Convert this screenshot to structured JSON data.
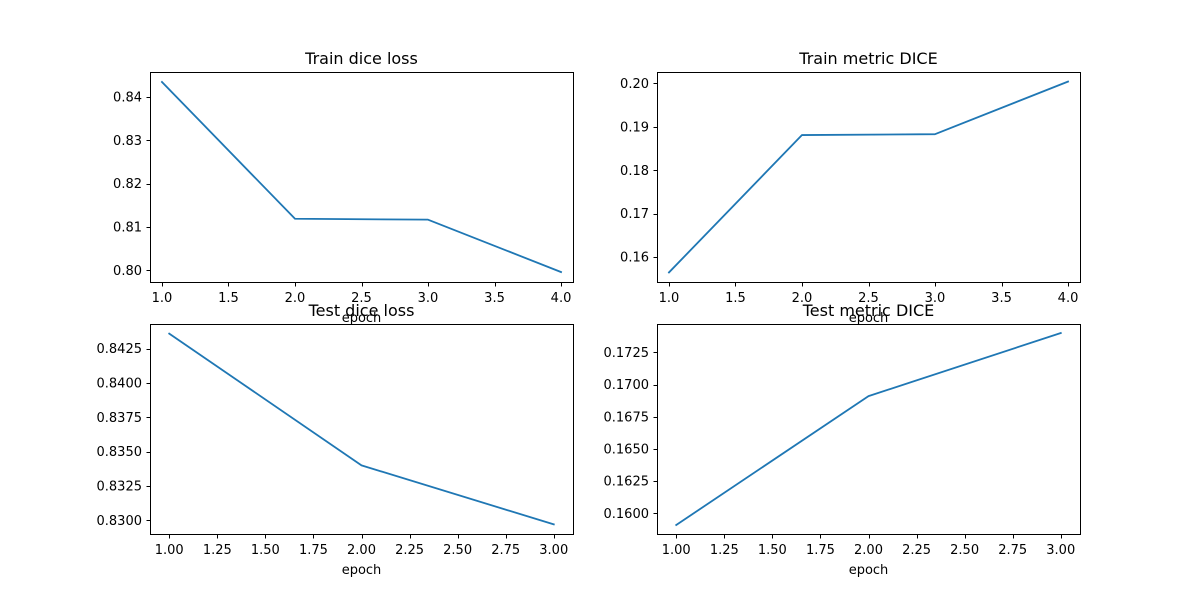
{
  "chart_data": [
    {
      "type": "line",
      "title": "Train dice loss",
      "xlabel": "epoch",
      "ylabel": "",
      "x": [
        1,
        2,
        3,
        4
      ],
      "series": [
        {
          "values": [
            0.8435,
            0.8119,
            0.8117,
            0.7996
          ]
        }
      ],
      "xlim": [
        0.91,
        4.09
      ],
      "ylim": [
        0.7973,
        0.8458
      ],
      "xticks": [
        1.0,
        1.5,
        2.0,
        2.5,
        3.0,
        3.5,
        4.0
      ],
      "xtick_labels": [
        "1.0",
        "1.5",
        "2.0",
        "2.5",
        "3.0",
        "3.5",
        "4.0"
      ],
      "yticks": [
        0.8,
        0.81,
        0.82,
        0.83,
        0.84
      ],
      "ytick_labels": [
        "0.80",
        "0.81",
        "0.82",
        "0.83",
        "0.84"
      ],
      "grid": false,
      "color": "#1f77b4"
    },
    {
      "type": "line",
      "title": "Train metric DICE",
      "xlabel": "epoch",
      "ylabel": "",
      "x": [
        1,
        2,
        3,
        4
      ],
      "series": [
        {
          "values": [
            0.1565,
            0.1881,
            0.1883,
            0.2004
          ]
        }
      ],
      "xlim": [
        0.91,
        4.09
      ],
      "ylim": [
        0.1543,
        0.2026
      ],
      "xticks": [
        1.0,
        1.5,
        2.0,
        2.5,
        3.0,
        3.5,
        4.0
      ],
      "xtick_labels": [
        "1.0",
        "1.5",
        "2.0",
        "2.5",
        "3.0",
        "3.5",
        "4.0"
      ],
      "yticks": [
        0.16,
        0.17,
        0.18,
        0.19,
        0.2
      ],
      "ytick_labels": [
        "0.16",
        "0.17",
        "0.18",
        "0.19",
        "0.20"
      ],
      "grid": false,
      "color": "#1f77b4"
    },
    {
      "type": "line",
      "title": "Test dice loss",
      "xlabel": "epoch",
      "ylabel": "",
      "x": [
        1,
        2,
        3
      ],
      "series": [
        {
          "values": [
            0.8436,
            0.834,
            0.8297
          ]
        }
      ],
      "xlim": [
        0.9,
        3.1
      ],
      "ylim": [
        0.829,
        0.8443
      ],
      "xticks": [
        1.0,
        1.25,
        1.5,
        1.75,
        2.0,
        2.25,
        2.5,
        2.75,
        3.0
      ],
      "xtick_labels": [
        "1.00",
        "1.25",
        "1.50",
        "1.75",
        "2.00",
        "2.25",
        "2.50",
        "2.75",
        "3.00"
      ],
      "yticks": [
        0.83,
        0.8325,
        0.835,
        0.8375,
        0.84,
        0.8425
      ],
      "ytick_labels": [
        "0.8300",
        "0.8325",
        "0.8350",
        "0.8375",
        "0.8400",
        "0.8425"
      ],
      "grid": false,
      "color": "#1f77b4"
    },
    {
      "type": "line",
      "title": "Test metric DICE",
      "xlabel": "epoch",
      "ylabel": "",
      "x": [
        1,
        2,
        3
      ],
      "series": [
        {
          "values": [
            0.1591,
            0.1691,
            0.174
          ]
        }
      ],
      "xlim": [
        0.9,
        3.1
      ],
      "ylim": [
        0.1584,
        0.1747
      ],
      "xticks": [
        1.0,
        1.25,
        1.5,
        1.75,
        2.0,
        2.25,
        2.5,
        2.75,
        3.0
      ],
      "xtick_labels": [
        "1.00",
        "1.25",
        "1.50",
        "1.75",
        "2.00",
        "2.25",
        "2.50",
        "2.75",
        "3.00"
      ],
      "yticks": [
        0.16,
        0.1625,
        0.165,
        0.1675,
        0.17,
        0.1725
      ],
      "ytick_labels": [
        "0.1600",
        "0.1625",
        "0.1650",
        "0.1675",
        "0.1700",
        "0.1725"
      ],
      "grid": false,
      "color": "#1f77b4"
    }
  ]
}
